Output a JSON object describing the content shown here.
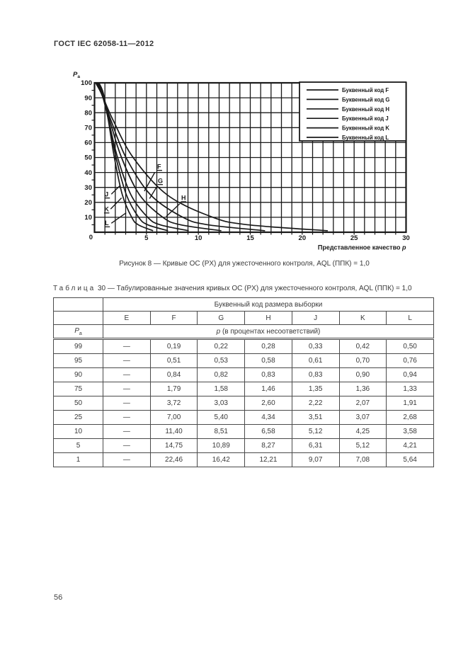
{
  "page": {
    "header": "ГОСТ IEC 62058-11—2012",
    "page_number": "56"
  },
  "figure": {
    "caption": "Рисунок 8 — Кривые ОС (PX) для ужесточенного контроля, AQL (ППК) = 1,0"
  },
  "chart_data": {
    "type": "line",
    "title": "",
    "xlabel": "Представленное качество p",
    "xlabel_var": "p",
    "ylabel": "Pa",
    "ylabel_base": "P",
    "ylabel_sub": "a",
    "xlim": [
      0,
      30
    ],
    "ylim": [
      0,
      100
    ],
    "x_ticks": [
      0,
      5,
      10,
      15,
      20,
      25,
      30
    ],
    "y_ticks": [
      10,
      20,
      30,
      40,
      50,
      60,
      70,
      80,
      90,
      100
    ],
    "x_grid_step": 1,
    "y_grid_step": 10,
    "grid": "on",
    "legend_position": "top-right",
    "pa_levels": [
      99,
      95,
      90,
      75,
      50,
      25,
      10,
      5,
      1
    ],
    "series": [
      {
        "label": "F",
        "legend": "Буквенный код F",
        "p": [
          0.19,
          0.51,
          0.84,
          1.79,
          3.72,
          7.0,
          11.4,
          14.75,
          22.46
        ],
        "annotation": {
          "label_at": [
            6.03,
            42.5
          ],
          "leader_from": [
            5.8,
            40.0
          ],
          "leader_to": [
            4.8,
            27.5
          ]
        }
      },
      {
        "label": "G",
        "legend": "Буквенный код G",
        "p": [
          0.22,
          0.53,
          0.82,
          1.58,
          3.03,
          5.4,
          8.51,
          10.89,
          16.42
        ],
        "annotation": {
          "label_at": [
            6.1,
            33.0
          ],
          "leader_from": [
            6.0,
            30.5
          ],
          "leader_to": [
            5.3,
            22.5
          ]
        }
      },
      {
        "label": "H",
        "legend": "Буквенный код H",
        "p": [
          0.28,
          0.58,
          0.83,
          1.46,
          2.6,
          4.34,
          6.58,
          8.27,
          12.21
        ],
        "annotation": {
          "label_at": [
            8.35,
            21.5
          ],
          "leader_from": [
            8.2,
            19.0
          ],
          "leader_to": [
            6.9,
            10.5
          ]
        }
      },
      {
        "label": "J",
        "legend": "Буквенный код J",
        "p": [
          0.33,
          0.61,
          0.83,
          1.35,
          2.22,
          3.51,
          5.12,
          6.31,
          9.07
        ],
        "annotation": {
          "label_at": [
            1.0,
            24.0
          ],
          "leader_from": [
            1.62,
            25.5
          ],
          "leader_to": [
            2.5,
            31.5
          ]
        }
      },
      {
        "label": "K",
        "legend": "Буквенный код K",
        "p": [
          0.42,
          0.7,
          0.9,
          1.36,
          2.07,
          3.07,
          4.25,
          5.12,
          7.08
        ],
        "annotation": {
          "label_at": [
            0.95,
            14.0
          ],
          "leader_from": [
            1.55,
            15.5
          ],
          "leader_to": [
            2.6,
            23.0
          ]
        }
      },
      {
        "label": "L",
        "legend": "Буквенный код L",
        "p": [
          0.5,
          0.76,
          0.94,
          1.33,
          1.91,
          2.68,
          3.58,
          4.21,
          5.64
        ],
        "annotation": {
          "label_at": [
            1.0,
            4.7
          ],
          "leader_from": [
            1.62,
            6.0
          ],
          "leader_to": [
            3.05,
            13.0
          ]
        }
      }
    ]
  },
  "table": {
    "caption_word": "Таблица",
    "caption_number": "30",
    "caption_rest": "— Табулированные значения кривых ОС (PX) для ужесточенного контроля, AQL (ППК) = 1,0",
    "group_header": "Буквенный код размера выборки",
    "col_headers": [
      "E",
      "F",
      "G",
      "H",
      "J",
      "K",
      "L"
    ],
    "row_header_base": "P",
    "row_header_sub": "a",
    "sub_header_var": "p",
    "sub_header_rest": " (в процентах несоответствий)",
    "rows": [
      {
        "pa": "99",
        "values": [
          "—",
          "0,19",
          "0,22",
          "0,28",
          "0,33",
          "0,42",
          "0,50"
        ]
      },
      {
        "pa": "95",
        "values": [
          "—",
          "0,51",
          "0,53",
          "0,58",
          "0,61",
          "0,70",
          "0,76"
        ]
      },
      {
        "pa": "90",
        "values": [
          "—",
          "0,84",
          "0,82",
          "0,83",
          "0,83",
          "0,90",
          "0,94"
        ]
      },
      {
        "pa": "75",
        "values": [
          "—",
          "1,79",
          "1,58",
          "1,46",
          "1,35",
          "1,36",
          "1,33"
        ]
      },
      {
        "pa": "50",
        "values": [
          "—",
          "3,72",
          "3,03",
          "2,60",
          "2,22",
          "2,07",
          "1,91"
        ]
      },
      {
        "pa": "25",
        "values": [
          "—",
          "7,00",
          "5,40",
          "4,34",
          "3,51",
          "3,07",
          "2,68"
        ]
      },
      {
        "pa": "10",
        "values": [
          "—",
          "11,40",
          "8,51",
          "6,58",
          "5,12",
          "4,25",
          "3,58"
        ]
      },
      {
        "pa": "5",
        "values": [
          "—",
          "14,75",
          "10,89",
          "8,27",
          "6,31",
          "5,12",
          "4,21"
        ]
      },
      {
        "pa": "1",
        "values": [
          "—",
          "22,46",
          "16,42",
          "12,21",
          "9,07",
          "7,08",
          "5,64"
        ]
      }
    ]
  },
  "colors": {
    "paper": "#ffffff",
    "ink": "#1c1c1c"
  }
}
